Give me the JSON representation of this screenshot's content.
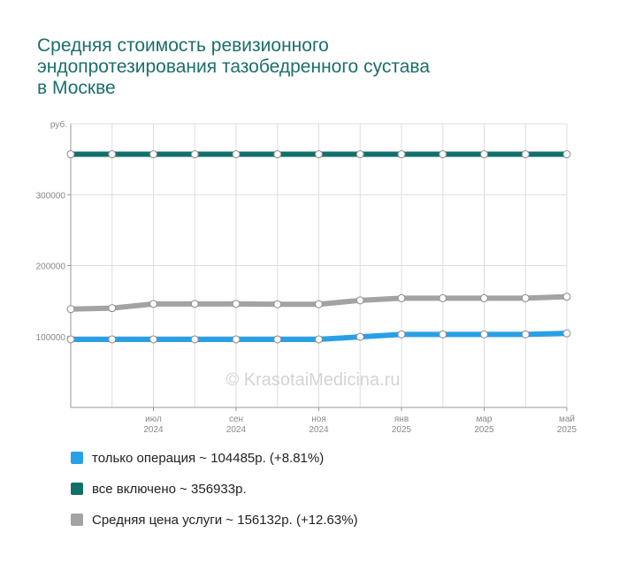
{
  "title": "Средняя стоимость ревизионного\nэндопротезирования тазобедренного сустава\nв Москве",
  "watermark": "© KrasotaiMedicina.ru",
  "chart_data": {
    "type": "line",
    "title": "Средняя стоимость ревизионного эндопротезирования тазобедренного сустава в Москве",
    "ylabel": "руб.",
    "ylim": [
      0,
      400000
    ],
    "yticks": [
      100000,
      200000,
      300000
    ],
    "ytick_labels": [
      "100000",
      "200000",
      "300000"
    ],
    "x": [
      "2024-05",
      "2024-06",
      "2024-07",
      "2024-08",
      "2024-09",
      "2024-10",
      "2024-11",
      "2024-12",
      "2025-01",
      "2025-02",
      "2025-03",
      "2025-04",
      "2025-05"
    ],
    "xticks": [
      {
        "x": "2024-07",
        "label": "июл",
        "year": "2024"
      },
      {
        "x": "2024-09",
        "label": "сен",
        "year": "2024"
      },
      {
        "x": "2024-11",
        "label": "ноя",
        "year": "2024"
      },
      {
        "x": "2025-01",
        "label": "янв",
        "year": "2025"
      },
      {
        "x": "2025-03",
        "label": "мар",
        "year": "2025"
      },
      {
        "x": "2025-05",
        "label": "май",
        "year": "2025"
      }
    ],
    "grid": true,
    "legend_position": "bottom",
    "series": [
      {
        "name": "только операция",
        "color": "#29a0e6",
        "values": [
          96000,
          96000,
          96000,
          96000,
          96000,
          96000,
          96000,
          99500,
          103000,
          103000,
          103000,
          103000,
          104485
        ],
        "legend_text": "только операция ~ 104485р. (+8.81%)"
      },
      {
        "name": "все включено",
        "color": "#12706a",
        "values": [
          356933,
          356933,
          356933,
          356933,
          356933,
          356933,
          356933,
          356933,
          356933,
          356933,
          356933,
          356933,
          356933
        ],
        "legend_text": "все включено ~ 356933р."
      },
      {
        "name": "Средняя цена услуги",
        "color": "#a3a3a3",
        "values": [
          138600,
          140000,
          146000,
          146000,
          146000,
          145500,
          145500,
          151000,
          154000,
          154000,
          154000,
          154000,
          156132
        ],
        "legend_text": "Средняя цена услуги ~ 156132р. (+12.63%)"
      }
    ]
  }
}
